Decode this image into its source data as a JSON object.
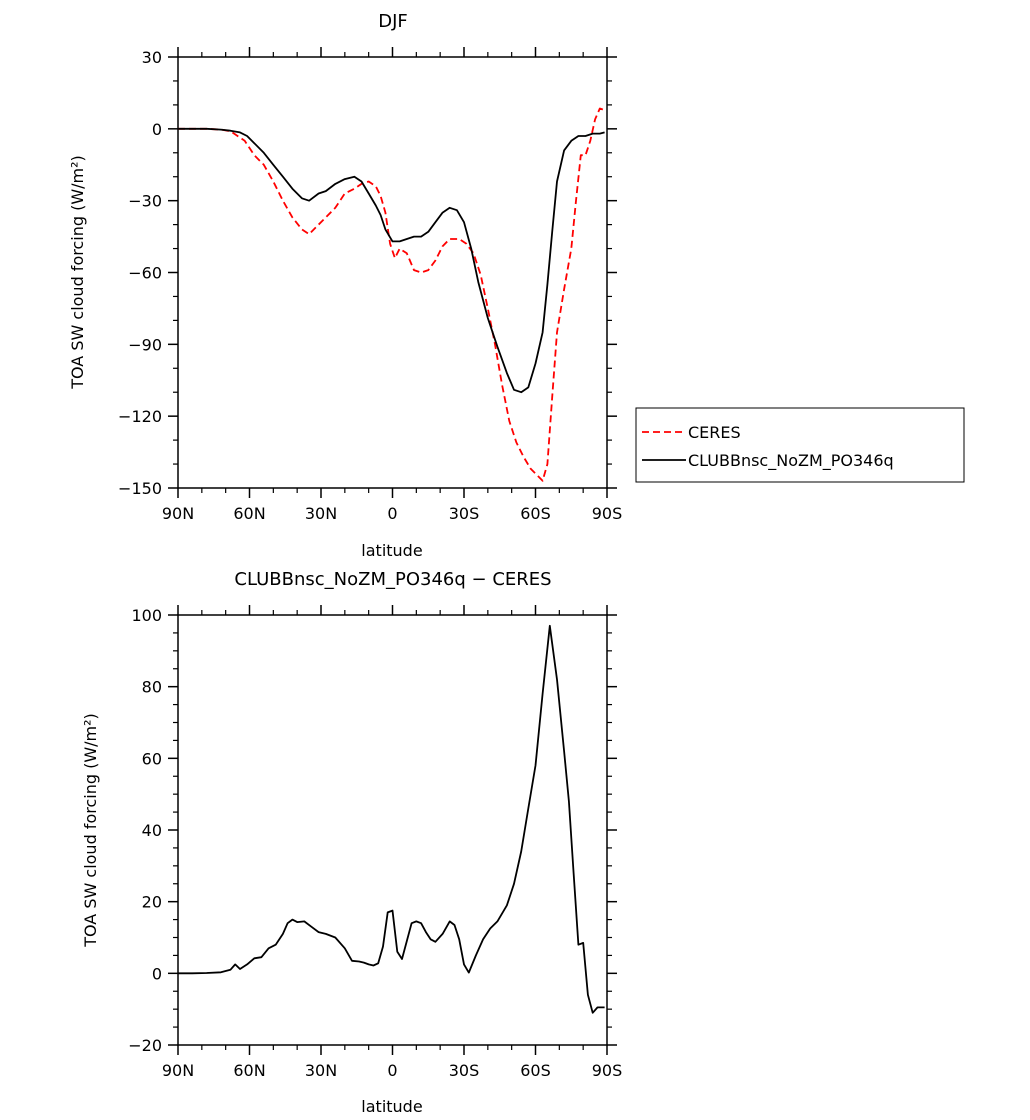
{
  "chart_data": [
    {
      "type": "line",
      "title": "DJF",
      "xlabel": "latitude",
      "ylabel": "TOA SW cloud forcing (W/m²)",
      "xlim": [
        90,
        -90
      ],
      "ylim": [
        -150,
        30
      ],
      "x_ticks": [
        90,
        60,
        30,
        0,
        -30,
        -60,
        -90
      ],
      "x_tick_labels": [
        "90N",
        "60N",
        "30N",
        "0",
        "30S",
        "60S",
        "90S"
      ],
      "y_ticks": [
        30,
        0,
        -30,
        -60,
        -90,
        -120,
        -150
      ],
      "y_tick_labels": [
        "30",
        "0",
        "−30",
        "−60",
        "−90",
        "−120",
        "−150"
      ],
      "legend_position": "right",
      "series": [
        {
          "name": "CERES",
          "color": "#ff0000",
          "dash": "dashed",
          "x": [
            90,
            84,
            78,
            72,
            68,
            65,
            62,
            58,
            54,
            50,
            46,
            42,
            38,
            35,
            31,
            28,
            24,
            20,
            16,
            13,
            10,
            7,
            5,
            3,
            1,
            -1,
            -3,
            -6,
            -9,
            -12,
            -15,
            -18,
            -21,
            -24,
            -28,
            -31,
            -34,
            -37,
            -40,
            -43,
            -46,
            -49,
            -52,
            -55,
            -58,
            -61,
            -63,
            -65,
            -67,
            -69,
            -72,
            -75,
            -77,
            -79,
            -81,
            -83,
            -85,
            -87,
            -88.5
          ],
          "y": [
            0,
            0,
            0,
            -0.3,
            -1,
            -3,
            -5,
            -11,
            -15,
            -22,
            -30,
            -37,
            -42,
            -44,
            -40,
            -37,
            -33,
            -27,
            -25,
            -23,
            -22,
            -24,
            -28,
            -35,
            -48,
            -54,
            -50,
            -52,
            -59,
            -60,
            -59,
            -55,
            -49,
            -46,
            -46,
            -48,
            -52,
            -61,
            -75,
            -90,
            -107,
            -122,
            -131,
            -137,
            -142,
            -145,
            -147,
            -140,
            -112,
            -85,
            -67,
            -50,
            -30,
            -11,
            -11,
            -5,
            4,
            8.5,
            8
          ]
        },
        {
          "name": "CLUBBnsc_NoZM_PO346q",
          "color": "#000000",
          "dash": "solid",
          "x": [
            90,
            84,
            78,
            72,
            68,
            64,
            61,
            58,
            54,
            50,
            46,
            42,
            38,
            35,
            31,
            28,
            24,
            20,
            16,
            13,
            10,
            7,
            5,
            3,
            0,
            -3,
            -6,
            -9,
            -12,
            -15,
            -18,
            -21,
            -24,
            -27,
            -30,
            -33,
            -36,
            -40,
            -44,
            -48,
            -51,
            -54,
            -57,
            -60,
            -63,
            -65,
            -67,
            -69,
            -72,
            -75,
            -78,
            -81,
            -84,
            -87,
            -89
          ],
          "y": [
            0,
            0,
            0,
            -0.3,
            -0.8,
            -1.5,
            -3,
            -6,
            -10,
            -15,
            -20,
            -25,
            -29,
            -30,
            -27,
            -26,
            -23,
            -21,
            -20,
            -22,
            -27,
            -32,
            -36,
            -42,
            -47,
            -47,
            -46,
            -45,
            -45,
            -43,
            -39,
            -35,
            -33,
            -34,
            -39,
            -50,
            -64,
            -79,
            -91,
            -102,
            -109,
            -110,
            -108,
            -98,
            -85,
            -65,
            -43,
            -22,
            -9,
            -5,
            -3,
            -3,
            -2,
            -2,
            -1.5
          ]
        }
      ]
    },
    {
      "type": "line",
      "title": "CLUBBnsc_NoZM_PO346q − CERES",
      "xlabel": "latitude",
      "ylabel": "TOA SW cloud forcing (W/m²)",
      "xlim": [
        90,
        -90
      ],
      "ylim": [
        -20,
        100
      ],
      "x_ticks": [
        90,
        60,
        30,
        0,
        -30,
        -60,
        -90
      ],
      "x_tick_labels": [
        "90N",
        "60N",
        "30N",
        "0",
        "30S",
        "60S",
        "90S"
      ],
      "y_ticks": [
        100,
        80,
        60,
        40,
        20,
        0,
        -20
      ],
      "y_tick_labels": [
        "100",
        "80",
        "60",
        "40",
        "20",
        "0",
        "−20"
      ],
      "series": [
        {
          "color": "#000000",
          "dash": "solid",
          "x": [
            90,
            84,
            78,
            72,
            68,
            66,
            64,
            61,
            58,
            55,
            52,
            49,
            46,
            44,
            42,
            40,
            37,
            34,
            31,
            28,
            24,
            20,
            17,
            14,
            12,
            10,
            8,
            6,
            4,
            2,
            0,
            -2,
            -4,
            -6,
            -8,
            -10,
            -12,
            -14,
            -16,
            -18,
            -21,
            -24,
            -26,
            -28,
            -30,
            -32,
            -35,
            -38,
            -41,
            -44,
            -48,
            -51,
            -54,
            -57,
            -60,
            -63,
            -66,
            -69,
            -72,
            -74,
            -76,
            -78,
            -80,
            -82,
            -84,
            -86,
            -88,
            -89
          ],
          "y": [
            0,
            0,
            0.1,
            0.3,
            1,
            2.5,
            1.2,
            2.5,
            4.2,
            4.5,
            7,
            8,
            11,
            14,
            15,
            14.3,
            14.5,
            13,
            11.5,
            11,
            10,
            7,
            3.5,
            3.3,
            3,
            2.5,
            2.2,
            2.8,
            7.5,
            17,
            17.5,
            6,
            4,
            9,
            14,
            14.5,
            14,
            11.5,
            9.5,
            8.8,
            11,
            14.5,
            13.5,
            9.5,
            2.5,
            0.2,
            5,
            9.5,
            12.5,
            14.5,
            19,
            25,
            34,
            46,
            58,
            78,
            97,
            82,
            62,
            48,
            28,
            8,
            8.5,
            -6,
            -11,
            -9.5,
            -9.5,
            -9.5
          ]
        }
      ]
    }
  ]
}
